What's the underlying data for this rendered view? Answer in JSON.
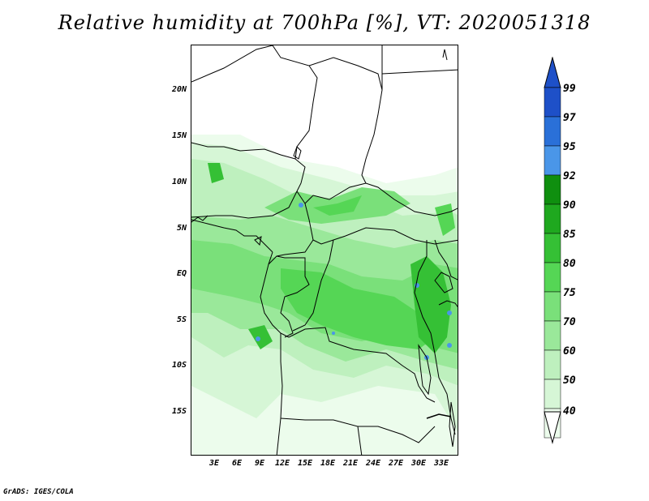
{
  "title": "Relative humidity at 700hPa [%], VT: 2020051318",
  "credit": "GrADS: IGES/COLA",
  "map": {
    "lat_labels": [
      "20N",
      "15N",
      "10N",
      "5N",
      "EQ",
      "5S",
      "10S",
      "15S"
    ],
    "lon_labels": [
      "3E",
      "6E",
      "9E",
      "12E",
      "15E",
      "18E",
      "21E",
      "24E",
      "27E",
      "30E",
      "33E"
    ]
  },
  "colorbar": {
    "labels": [
      "99",
      "97",
      "95",
      "92",
      "90",
      "85",
      "80",
      "75",
      "70",
      "60",
      "50",
      "40"
    ],
    "colors": [
      "#1e50c8",
      "#2a70d8",
      "#4a96e8",
      "#0f8f0f",
      "#1fa81f",
      "#35c035",
      "#55d655",
      "#7ae07a",
      "#9ae89a",
      "#bef0be",
      "#d6f6d6",
      "#ecfcec"
    ]
  }
}
